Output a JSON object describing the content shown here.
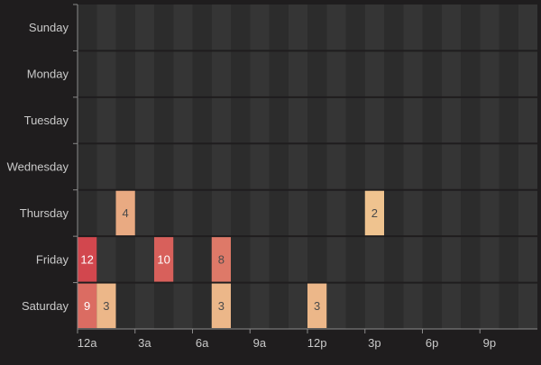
{
  "chart_data": {
    "type": "heatmap",
    "title": "",
    "xlabel": "",
    "ylabel": "",
    "y_categories": [
      "Sunday",
      "Monday",
      "Tuesday",
      "Wednesday",
      "Thursday",
      "Friday",
      "Saturday"
    ],
    "x_categories": [
      "12a",
      "1a",
      "2a",
      "3a",
      "4a",
      "5a",
      "6a",
      "7a",
      "8a",
      "9a",
      "10a",
      "11a",
      "12p",
      "1p",
      "2p",
      "3p",
      "4p",
      "5p",
      "6p",
      "7p",
      "8p",
      "9p",
      "10p",
      "11p"
    ],
    "x_tick_labels": [
      "12a",
      "3a",
      "6a",
      "9a",
      "12p",
      "3p",
      "6p",
      "9p"
    ],
    "x_tick_every": 3,
    "cells": [
      {
        "day": "Thursday",
        "hour": "2a",
        "value": 4
      },
      {
        "day": "Thursday",
        "hour": "3p",
        "value": 2
      },
      {
        "day": "Friday",
        "hour": "12a",
        "value": 12
      },
      {
        "day": "Friday",
        "hour": "4a",
        "value": 10
      },
      {
        "day": "Friday",
        "hour": "7a",
        "value": 8
      },
      {
        "day": "Saturday",
        "hour": "12a",
        "value": 9
      },
      {
        "day": "Saturday",
        "hour": "1a",
        "value": 3
      },
      {
        "day": "Saturday",
        "hour": "7a",
        "value": 3
      },
      {
        "day": "Saturday",
        "hour": "12p",
        "value": 3
      }
    ],
    "color_scale": {
      "low": "#efc38f",
      "high": "#d2474e"
    },
    "background_colors": {
      "page": "#1f1d1e",
      "cell_dark": "#2c2c2c",
      "cell_light": "#353535"
    },
    "text_colors": {
      "axis": "#c9c9c9",
      "value_on_light": "#4a4a4a",
      "value_on_dark": "#ffffff"
    }
  }
}
